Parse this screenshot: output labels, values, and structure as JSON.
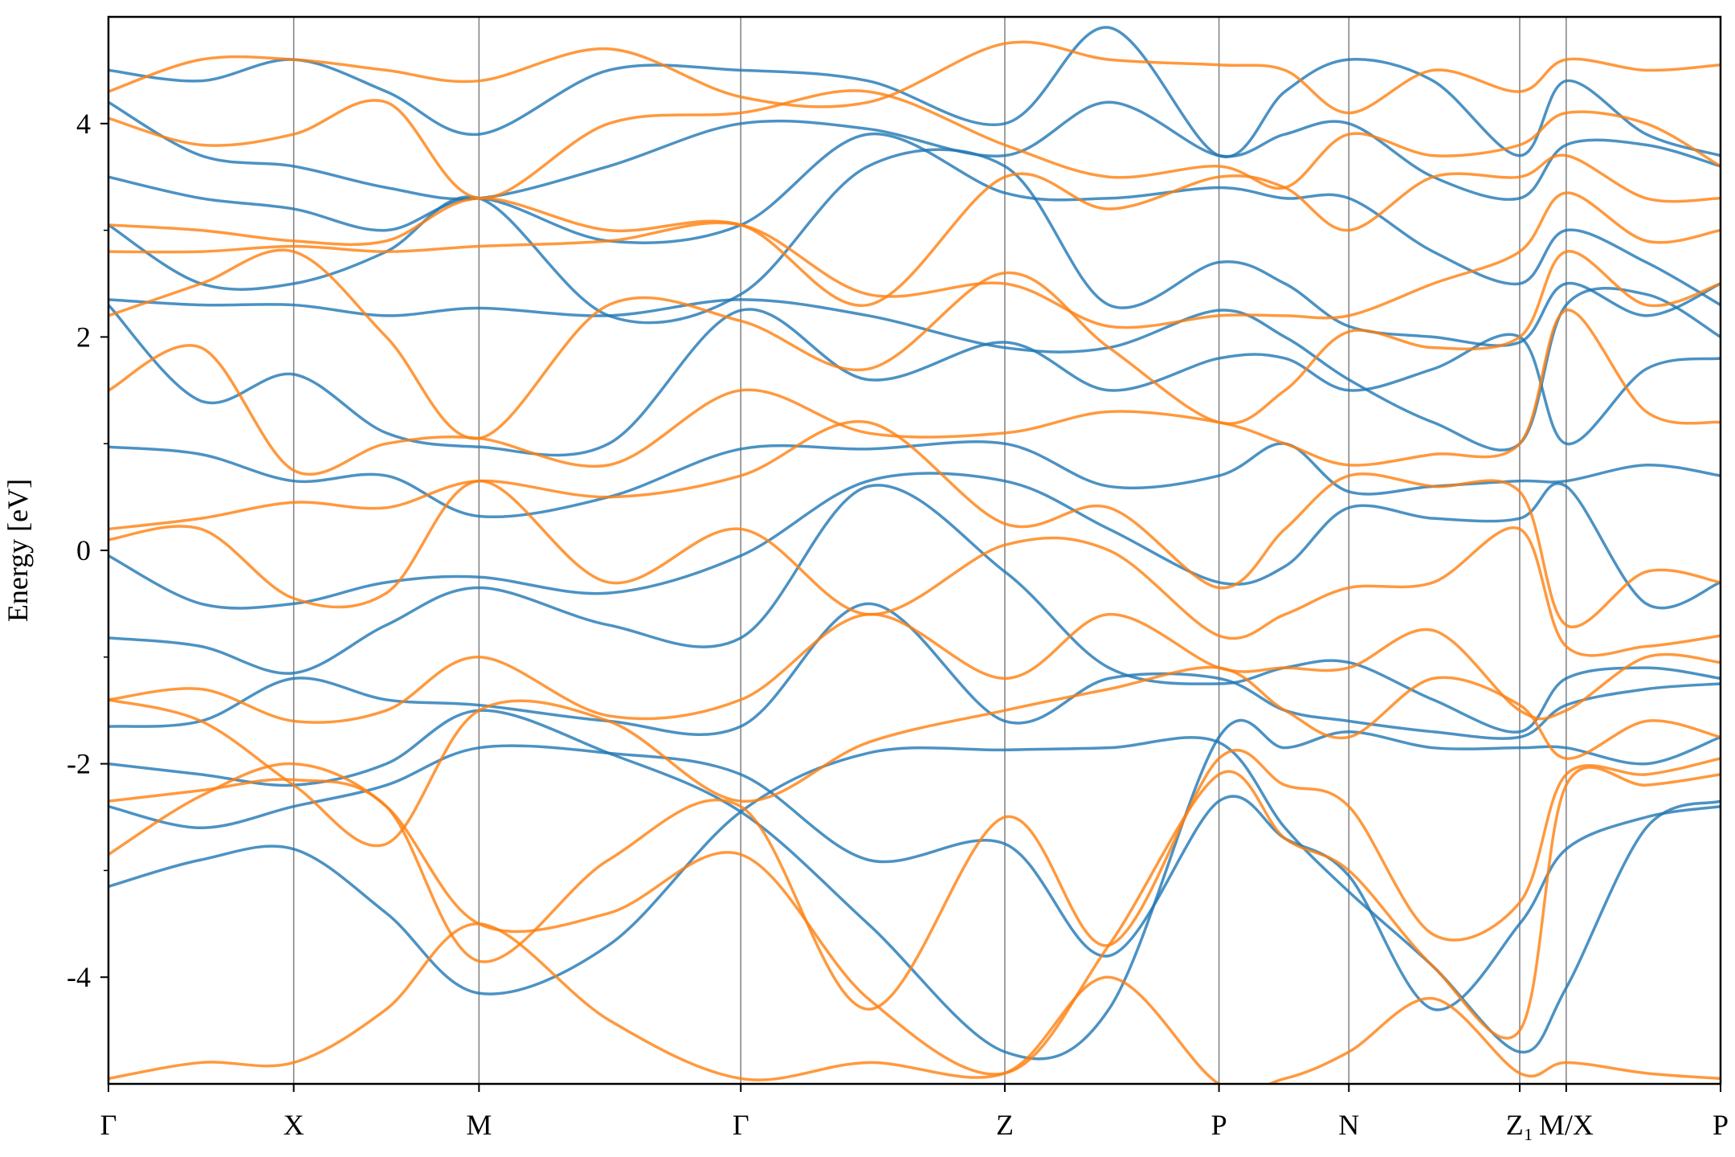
{
  "chart_data": {
    "type": "line",
    "ylabel": "Energy [eV]",
    "x": [
      0,
      0.5,
      1,
      1.5,
      2,
      2.7,
      3.413,
      4.1,
      4.838,
      5.4,
      5.994,
      6.35,
      6.695,
      7.15,
      7.617,
      7.868,
      8.3,
      8.701
    ],
    "xlim": [
      0,
      8.701
    ],
    "xticks": [
      {
        "value": 0,
        "label": "Γ"
      },
      {
        "value": 1,
        "label": "X"
      },
      {
        "value": 2,
        "label": "M"
      },
      {
        "value": 3.413,
        "label": "Γ"
      },
      {
        "value": 4.838,
        "label": "Z"
      },
      {
        "value": 5.994,
        "label": "P"
      },
      {
        "value": 6.695,
        "label": "N"
      },
      {
        "value": 7.617,
        "label": "Z₁"
      },
      {
        "value": 7.868,
        "label": "M/X"
      },
      {
        "value": 8.701,
        "label": "P"
      }
    ],
    "ylim": [
      -5,
      5
    ],
    "yticks": [
      -4,
      -2,
      0,
      2,
      4
    ],
    "yminorticks": [
      -3,
      -1,
      1,
      3
    ],
    "series": [
      {
        "color": "#1f77b4",
        "values": [
          -3.15,
          -2.9,
          -2.8,
          -3.4,
          -4.15,
          -3.7,
          -2.45,
          -1.9,
          -1.87,
          -1.85,
          -1.8,
          -2.6,
          -3.2,
          -3.9,
          -4.7,
          -4.1,
          -2.6,
          -2.35
        ]
      },
      {
        "color": "#1f77b4",
        "values": [
          -2.4,
          -2.6,
          -2.4,
          -2.2,
          -1.85,
          -1.9,
          -2.1,
          -2.9,
          -2.75,
          -3.8,
          -2.35,
          -2.7,
          -3.05,
          -4.3,
          -3.5,
          -2.8,
          -2.5,
          -2.4
        ]
      },
      {
        "color": "#1f77b4",
        "values": [
          -2.0,
          -2.1,
          -2.2,
          -2.0,
          -1.5,
          -1.9,
          -2.45,
          -3.5,
          -4.7,
          -4.3,
          -1.75,
          -1.85,
          -1.7,
          -1.85,
          -1.85,
          -1.85,
          -2.0,
          -1.75
        ]
      },
      {
        "color": "#1f77b4",
        "values": [
          -1.65,
          -1.6,
          -1.2,
          -1.4,
          -1.45,
          -1.6,
          -1.65,
          -0.5,
          -1.6,
          -1.2,
          -1.2,
          -1.5,
          -1.6,
          -1.7,
          -1.75,
          -1.45,
          -1.3,
          -1.25
        ]
      },
      {
        "color": "#1f77b4",
        "values": [
          -0.82,
          -0.9,
          -1.15,
          -0.7,
          -0.35,
          -0.7,
          -0.82,
          0.6,
          -0.2,
          -1.1,
          -1.25,
          -1.1,
          -1.05,
          -1.4,
          -1.7,
          -1.2,
          -1.1,
          -1.2
        ]
      },
      {
        "color": "#1f77b4",
        "values": [
          -0.05,
          -0.5,
          -0.5,
          -0.3,
          -0.25,
          -0.4,
          -0.05,
          0.65,
          0.65,
          0.2,
          -0.3,
          -0.15,
          0.4,
          0.3,
          0.3,
          0.6,
          -0.5,
          -0.3
        ]
      },
      {
        "color": "#1f77b4",
        "values": [
          0.97,
          0.9,
          0.65,
          0.7,
          0.32,
          0.5,
          0.95,
          0.95,
          1.0,
          0.6,
          0.7,
          1.0,
          0.55,
          0.6,
          0.65,
          0.65,
          0.8,
          0.7
        ]
      },
      {
        "color": "#1f77b4",
        "values": [
          2.3,
          1.4,
          1.65,
          1.1,
          0.97,
          1.0,
          2.25,
          1.6,
          1.95,
          1.5,
          1.8,
          1.8,
          1.5,
          1.7,
          2.0,
          1.0,
          1.7,
          1.8
        ]
      },
      {
        "color": "#1f77b4",
        "values": [
          2.35,
          2.3,
          2.3,
          2.2,
          2.27,
          2.2,
          2.35,
          2.2,
          1.9,
          1.9,
          2.25,
          2.0,
          1.6,
          1.2,
          1.0,
          2.3,
          2.4,
          2.0
        ]
      },
      {
        "color": "#1f77b4",
        "values": [
          3.05,
          2.5,
          2.5,
          2.8,
          3.3,
          2.2,
          2.4,
          3.6,
          3.6,
          2.3,
          2.7,
          2.5,
          2.1,
          2.0,
          1.95,
          2.5,
          2.2,
          2.5
        ]
      },
      {
        "color": "#1f77b4",
        "values": [
          3.5,
          3.3,
          3.2,
          3.0,
          3.3,
          2.9,
          3.05,
          3.9,
          3.35,
          3.3,
          3.4,
          3.3,
          3.3,
          2.8,
          2.5,
          3.0,
          2.7,
          2.3
        ]
      },
      {
        "color": "#1f77b4",
        "values": [
          4.2,
          3.7,
          3.6,
          3.4,
          3.3,
          3.6,
          4.0,
          3.95,
          3.7,
          4.2,
          3.7,
          3.9,
          4.0,
          3.5,
          3.3,
          3.8,
          3.8,
          3.6
        ]
      },
      {
        "color": "#1f77b4",
        "values": [
          4.5,
          4.4,
          4.6,
          4.3,
          3.9,
          4.5,
          4.5,
          4.4,
          4.0,
          4.9,
          3.7,
          4.3,
          4.6,
          4.4,
          3.7,
          4.4,
          3.9,
          3.7
        ]
      },
      {
        "color": "#ff7f0e",
        "values": [
          -2.85,
          -2.3,
          -2.0,
          -2.4,
          -3.5,
          -3.4,
          -2.85,
          -4.2,
          -4.9,
          -3.7,
          -2.1,
          -2.7,
          -3.0,
          -3.9,
          -4.5,
          -2.2,
          -2.2,
          -2.1
        ]
      },
      {
        "color": "#ff7f0e",
        "values": [
          -2.35,
          -2.25,
          -2.15,
          -2.4,
          -3.85,
          -2.9,
          -2.4,
          -4.3,
          -2.5,
          -3.7,
          -1.95,
          -2.2,
          -2.4,
          -3.6,
          -3.3,
          -2.1,
          -2.1,
          -1.95
        ]
      },
      {
        "color": "#ff7f0e",
        "values": [
          -1.4,
          -1.6,
          -2.2,
          -2.75,
          -1.5,
          -1.6,
          -2.35,
          -1.8,
          -1.5,
          -1.3,
          -1.1,
          -1.5,
          -1.75,
          -1.2,
          -1.45,
          -1.95,
          -1.6,
          -1.75
        ]
      },
      {
        "color": "#ff7f0e",
        "values": [
          -1.4,
          -1.3,
          -1.6,
          -1.5,
          -1.0,
          -1.55,
          -1.4,
          -0.6,
          -1.2,
          -0.6,
          -1.1,
          -1.1,
          -1.1,
          -0.75,
          -1.5,
          -1.5,
          -1.0,
          -1.05
        ]
      },
      {
        "color": "#ff7f0e",
        "values": [
          0.1,
          0.2,
          -0.45,
          -0.4,
          0.65,
          -0.3,
          0.2,
          -0.6,
          0.05,
          0.0,
          -0.8,
          -0.6,
          -0.35,
          -0.3,
          0.2,
          -0.9,
          -0.9,
          -0.8
        ]
      },
      {
        "color": "#ff7f0e",
        "values": [
          0.2,
          0.3,
          0.45,
          0.4,
          0.65,
          0.5,
          0.7,
          1.2,
          0.25,
          0.4,
          -0.35,
          0.2,
          0.7,
          0.6,
          0.55,
          -0.7,
          -0.2,
          -0.3
        ]
      },
      {
        "color": "#ff7f0e",
        "values": [
          1.5,
          1.9,
          0.75,
          1.0,
          1.05,
          0.8,
          1.5,
          1.1,
          1.1,
          1.3,
          1.2,
          1.0,
          0.8,
          0.9,
          1.0,
          2.25,
          1.3,
          1.2
        ]
      },
      {
        "color": "#ff7f0e",
        "values": [
          2.2,
          2.5,
          2.8,
          2.0,
          1.05,
          2.3,
          2.15,
          1.7,
          2.6,
          1.9,
          1.2,
          1.5,
          2.05,
          1.9,
          2.0,
          2.8,
          2.3,
          2.5
        ]
      },
      {
        "color": "#ff7f0e",
        "values": [
          2.8,
          2.8,
          2.85,
          2.8,
          2.85,
          2.9,
          3.05,
          2.4,
          2.5,
          2.1,
          2.2,
          2.2,
          2.2,
          2.5,
          2.8,
          3.35,
          2.9,
          3.0
        ]
      },
      {
        "color": "#ff7f0e",
        "values": [
          3.05,
          3.0,
          2.9,
          2.9,
          3.3,
          3.0,
          3.05,
          2.3,
          3.5,
          3.2,
          3.5,
          3.4,
          3.0,
          3.5,
          3.5,
          3.7,
          3.3,
          3.3
        ]
      },
      {
        "color": "#ff7f0e",
        "values": [
          4.05,
          3.8,
          3.9,
          4.2,
          3.3,
          4.0,
          4.1,
          4.3,
          3.8,
          3.5,
          3.6,
          3.4,
          3.9,
          3.7,
          3.8,
          4.1,
          4.0,
          3.6
        ]
      },
      {
        "color": "#ff7f0e",
        "values": [
          4.3,
          4.6,
          4.6,
          4.5,
          4.4,
          4.7,
          4.25,
          4.2,
          4.75,
          4.6,
          4.55,
          4.5,
          4.1,
          4.5,
          4.3,
          4.6,
          4.5,
          4.55
        ]
      },
      {
        "color": "#ff7f0e",
        "values": [
          -4.95,
          -4.8,
          -4.8,
          -4.3,
          -3.5,
          -4.4,
          -4.95,
          -4.8,
          -4.9,
          -4.0,
          -5.0,
          -4.95,
          -4.7,
          -4.2,
          -4.9,
          -4.8,
          -4.9,
          -4.95
        ]
      }
    ]
  }
}
